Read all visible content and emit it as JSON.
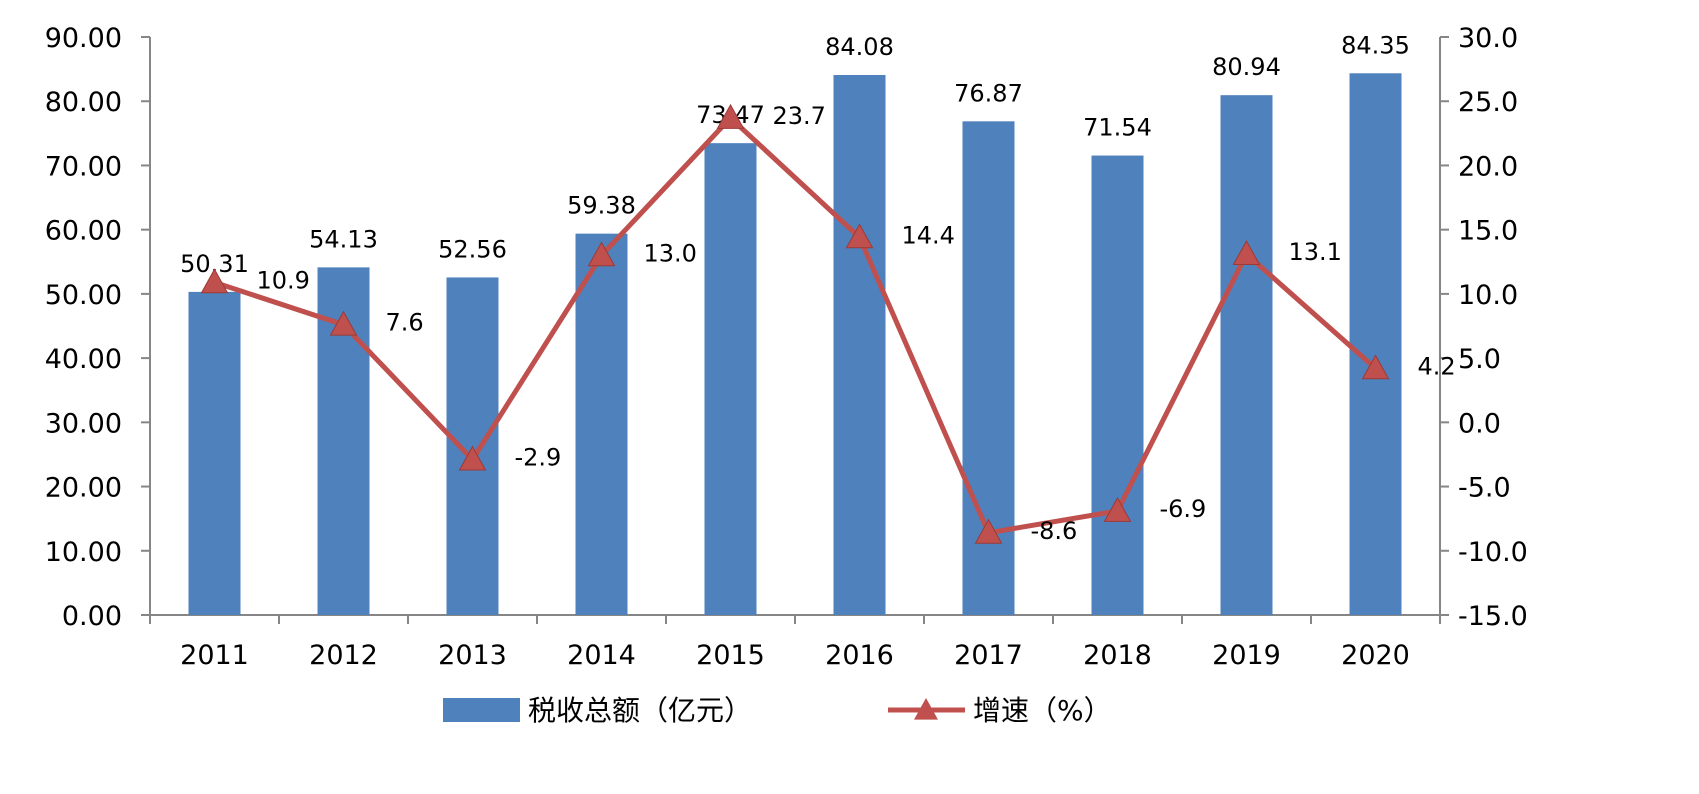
{
  "chart_data": {
    "type": "bar+line",
    "categories": [
      "2011",
      "2012",
      "2013",
      "2014",
      "2015",
      "2016",
      "2017",
      "2018",
      "2019",
      "2020"
    ],
    "series": [
      {
        "name": "税收总额（亿元）",
        "type": "bar",
        "axis": "left",
        "color": "#4F81BD",
        "values": [
          50.31,
          54.13,
          52.56,
          59.38,
          73.47,
          84.08,
          76.87,
          71.54,
          80.94,
          84.35
        ],
        "labels": [
          "50.31",
          "54.13",
          "52.56",
          "59.38",
          "73.47",
          "84.08",
          "76.87",
          "71.54",
          "80.94",
          "84.35"
        ]
      },
      {
        "name": "增速（%）",
        "type": "line",
        "axis": "right",
        "color": "#C0504D",
        "marker": "triangle",
        "values": [
          10.9,
          7.6,
          -2.9,
          13.0,
          23.7,
          14.4,
          -8.6,
          -6.9,
          13.1,
          4.2
        ],
        "labels": [
          "10.9",
          "7.6",
          "-2.9",
          "13.0",
          "23.7",
          "14.4",
          "-8.6",
          "-6.9",
          "13.1",
          "4.2"
        ]
      }
    ],
    "y_left": {
      "min": 0,
      "max": 90,
      "step": 10,
      "ticks": [
        "0.00",
        "10.00",
        "20.00",
        "30.00",
        "40.00",
        "50.00",
        "60.00",
        "70.00",
        "80.00",
        "90.00"
      ]
    },
    "y_right": {
      "min": -15,
      "max": 30,
      "step": 5,
      "ticks": [
        "-15.0",
        "-10.0",
        "-5.0",
        "0.0",
        "5.0",
        "10.0",
        "15.0",
        "20.0",
        "25.0",
        "30.0"
      ]
    },
    "grid": false,
    "legend": {
      "position": "bottom",
      "items": [
        "税收总额（亿元）",
        "增速（%）"
      ]
    }
  }
}
